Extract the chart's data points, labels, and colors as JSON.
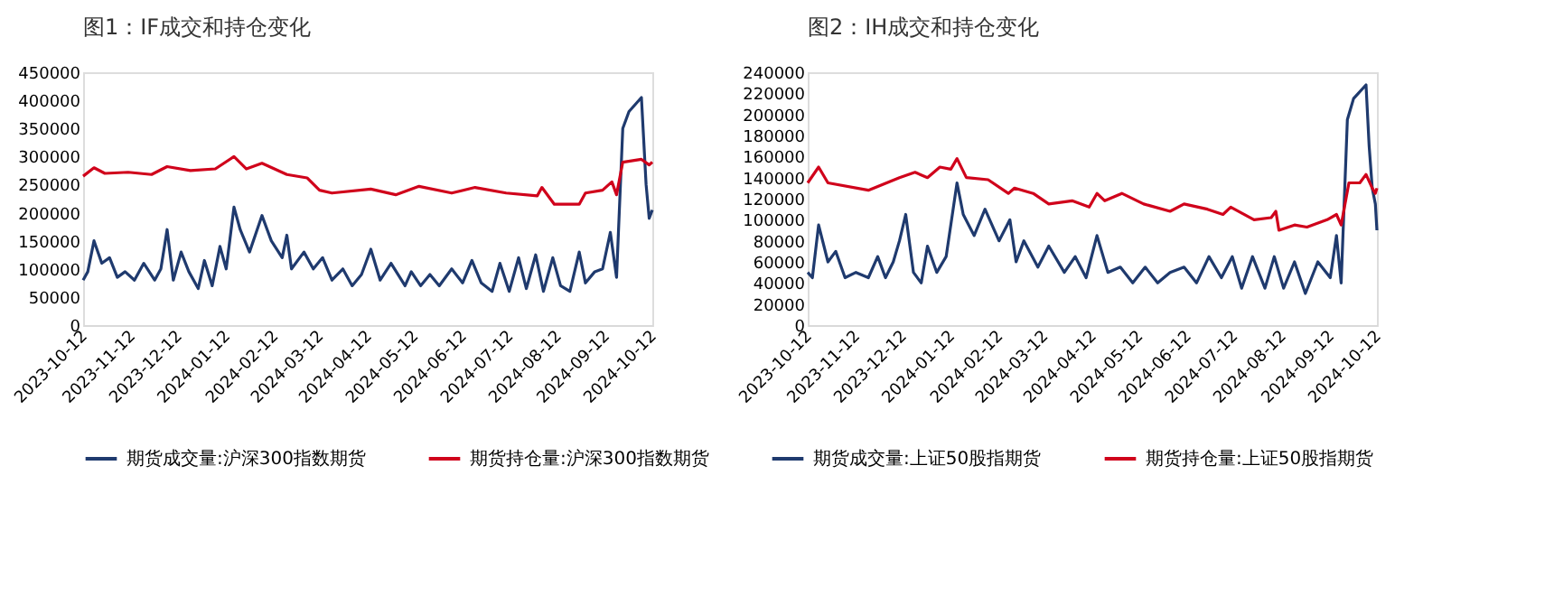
{
  "chart_data": [
    {
      "type": "line",
      "title": "图1：IF成交和持仓变化",
      "legend": "bottom",
      "grid": false,
      "marker": "none",
      "line_style": "solid",
      "xlim": [
        "2023-10-12",
        "2024-10-12"
      ],
      "xticks": [
        "2023-10-12",
        "2023-11-12",
        "2023-12-12",
        "2024-01-12",
        "2024-02-12",
        "2024-03-12",
        "2024-04-12",
        "2024-05-12",
        "2024-06-12",
        "2024-07-12",
        "2024-08-12",
        "2024-09-12",
        "2024-10-12"
      ],
      "ylim": [
        0,
        450000
      ],
      "yticks": [
        0,
        50000,
        100000,
        150000,
        200000,
        250000,
        300000,
        350000,
        400000,
        450000
      ],
      "series": [
        {
          "name": "期货成交量:沪深300指数期货",
          "color": "#1f3a6e",
          "x": [
            "2023-10-12",
            "2023-10-15",
            "2023-10-19",
            "2023-10-24",
            "2023-10-29",
            "2023-11-03",
            "2023-11-08",
            "2023-11-14",
            "2023-11-20",
            "2023-11-27",
            "2023-12-01",
            "2023-12-05",
            "2023-12-09",
            "2023-12-14",
            "2023-12-19",
            "2023-12-25",
            "2023-12-29",
            "2024-01-03",
            "2024-01-08",
            "2024-01-12",
            "2024-01-17",
            "2024-01-21",
            "2024-01-27",
            "2024-02-04",
            "2024-02-10",
            "2024-02-17",
            "2024-02-20",
            "2024-02-23",
            "2024-03-02",
            "2024-03-08",
            "2024-03-14",
            "2024-03-20",
            "2024-03-27",
            "2024-04-02",
            "2024-04-08",
            "2024-04-14",
            "2024-04-20",
            "2024-04-27",
            "2024-05-06",
            "2024-05-10",
            "2024-05-16",
            "2024-05-22",
            "2024-05-28",
            "2024-06-05",
            "2024-06-12",
            "2024-06-18",
            "2024-06-24",
            "2024-07-01",
            "2024-07-06",
            "2024-07-12",
            "2024-07-18",
            "2024-07-23",
            "2024-07-29",
            "2024-08-03",
            "2024-08-09",
            "2024-08-14",
            "2024-08-20",
            "2024-08-26",
            "2024-08-30",
            "2024-09-05",
            "2024-09-10",
            "2024-09-15",
            "2024-09-19",
            "2024-09-23",
            "2024-09-27",
            "2024-10-05",
            "2024-10-08",
            "2024-10-10",
            "2024-10-12"
          ],
          "values": [
            80000,
            95000,
            150000,
            110000,
            120000,
            85000,
            95000,
            80000,
            110000,
            80000,
            100000,
            170000,
            80000,
            130000,
            95000,
            65000,
            115000,
            70000,
            140000,
            100000,
            210000,
            170000,
            130000,
            195000,
            150000,
            120000,
            160000,
            100000,
            130000,
            100000,
            120000,
            80000,
            100000,
            70000,
            90000,
            135000,
            80000,
            110000,
            70000,
            95000,
            70000,
            90000,
            70000,
            100000,
            75000,
            115000,
            75000,
            60000,
            110000,
            60000,
            120000,
            65000,
            125000,
            60000,
            120000,
            70000,
            60000,
            130000,
            75000,
            95000,
            100000,
            165000,
            85000,
            350000,
            380000,
            405000,
            250000,
            190000,
            205000
          ]
        },
        {
          "name": "期货持仓量:沪深300指数期货",
          "color": "#d0021b",
          "x": [
            "2023-10-12",
            "2023-10-19",
            "2023-10-26",
            "2023-11-10",
            "2023-11-25",
            "2023-12-05",
            "2023-12-20",
            "2024-01-05",
            "2024-01-17",
            "2024-01-25",
            "2024-02-04",
            "2024-02-20",
            "2024-03-04",
            "2024-03-12",
            "2024-03-20",
            "2024-04-14",
            "2024-04-30",
            "2024-05-15",
            "2024-06-05",
            "2024-06-20",
            "2024-07-10",
            "2024-07-30",
            "2024-08-02",
            "2024-08-10",
            "2024-08-26",
            "2024-08-30",
            "2024-09-10",
            "2024-09-16",
            "2024-09-19",
            "2024-09-23",
            "2024-10-05",
            "2024-10-10",
            "2024-10-12"
          ],
          "values": [
            265000,
            280000,
            270000,
            272000,
            268000,
            282000,
            275000,
            278000,
            300000,
            278000,
            288000,
            268000,
            262000,
            240000,
            235000,
            242000,
            232000,
            247000,
            235000,
            245000,
            235000,
            230000,
            245000,
            215000,
            215000,
            235000,
            240000,
            255000,
            232000,
            290000,
            295000,
            285000,
            290000
          ]
        }
      ]
    },
    {
      "type": "line",
      "title": "图2：IH成交和持仓变化",
      "legend": "bottom",
      "grid": false,
      "marker": "none",
      "line_style": "solid",
      "xlim": [
        "2023-10-12",
        "2024-10-12"
      ],
      "xticks": [
        "2023-10-12",
        "2023-11-12",
        "2023-12-12",
        "2024-01-12",
        "2024-02-12",
        "2024-03-12",
        "2024-04-12",
        "2024-05-12",
        "2024-06-12",
        "2024-07-12",
        "2024-08-12",
        "2024-09-12",
        "2024-10-12"
      ],
      "ylim": [
        0,
        240000
      ],
      "yticks": [
        0,
        20000,
        40000,
        60000,
        80000,
        100000,
        120000,
        140000,
        160000,
        180000,
        200000,
        220000,
        240000
      ],
      "series": [
        {
          "name": "期货成交量:上证50股指期货",
          "color": "#1f3a6e",
          "x": [
            "2023-10-12",
            "2023-10-15",
            "2023-10-19",
            "2023-10-25",
            "2023-10-30",
            "2023-11-05",
            "2023-11-12",
            "2023-11-20",
            "2023-11-26",
            "2023-12-01",
            "2023-12-06",
            "2023-12-10",
            "2023-12-14",
            "2023-12-19",
            "2023-12-24",
            "2023-12-28",
            "2024-01-03",
            "2024-01-09",
            "2024-01-16",
            "2024-01-20",
            "2024-01-27",
            "2024-02-03",
            "2024-02-12",
            "2024-02-19",
            "2024-02-23",
            "2024-02-28",
            "2024-03-08",
            "2024-03-15",
            "2024-03-25",
            "2024-04-01",
            "2024-04-08",
            "2024-04-15",
            "2024-04-22",
            "2024-04-30",
            "2024-05-08",
            "2024-05-16",
            "2024-05-24",
            "2024-06-01",
            "2024-06-10",
            "2024-06-18",
            "2024-06-26",
            "2024-07-04",
            "2024-07-11",
            "2024-07-17",
            "2024-07-24",
            "2024-08-01",
            "2024-08-07",
            "2024-08-13",
            "2024-08-20",
            "2024-08-27",
            "2024-09-04",
            "2024-09-12",
            "2024-09-16",
            "2024-09-19",
            "2024-09-23",
            "2024-09-27",
            "2024-10-05",
            "2024-10-07",
            "2024-10-09",
            "2024-10-11",
            "2024-10-12"
          ],
          "values": [
            50000,
            45000,
            95000,
            60000,
            70000,
            45000,
            50000,
            45000,
            65000,
            45000,
            60000,
            80000,
            105000,
            50000,
            40000,
            75000,
            50000,
            65000,
            135000,
            105000,
            85000,
            110000,
            80000,
            100000,
            60000,
            80000,
            55000,
            75000,
            50000,
            65000,
            45000,
            85000,
            50000,
            55000,
            40000,
            55000,
            40000,
            50000,
            55000,
            40000,
            65000,
            45000,
            65000,
            35000,
            65000,
            35000,
            65000,
            35000,
            60000,
            30000,
            60000,
            45000,
            85000,
            40000,
            195000,
            215000,
            228000,
            170000,
            130000,
            115000,
            90000
          ]
        },
        {
          "name": "期货持仓量:上证50股指期货",
          "color": "#d0021b",
          "x": [
            "2023-10-12",
            "2023-10-19",
            "2023-10-25",
            "2023-11-20",
            "2023-12-10",
            "2023-12-20",
            "2023-12-28",
            "2024-01-05",
            "2024-01-12",
            "2024-01-16",
            "2024-01-22",
            "2024-02-05",
            "2024-02-18",
            "2024-02-22",
            "2024-03-05",
            "2024-03-15",
            "2024-03-30",
            "2024-04-10",
            "2024-04-15",
            "2024-04-20",
            "2024-05-01",
            "2024-05-15",
            "2024-06-01",
            "2024-06-10",
            "2024-06-25",
            "2024-07-05",
            "2024-07-10",
            "2024-07-25",
            "2024-08-05",
            "2024-08-08",
            "2024-08-10",
            "2024-08-20",
            "2024-08-28",
            "2024-09-10",
            "2024-09-16",
            "2024-09-19",
            "2024-09-24",
            "2024-10-01",
            "2024-10-05",
            "2024-10-09",
            "2024-10-11",
            "2024-10-12"
          ],
          "values": [
            135000,
            150000,
            135000,
            128000,
            140000,
            145000,
            140000,
            150000,
            148000,
            158000,
            140000,
            138000,
            125000,
            130000,
            125000,
            115000,
            118000,
            112000,
            125000,
            118000,
            125000,
            115000,
            108000,
            115000,
            110000,
            105000,
            112000,
            100000,
            102000,
            108000,
            90000,
            95000,
            93000,
            100000,
            105000,
            95000,
            135000,
            135000,
            143000,
            130000,
            125000,
            130000
          ]
        }
      ]
    }
  ]
}
